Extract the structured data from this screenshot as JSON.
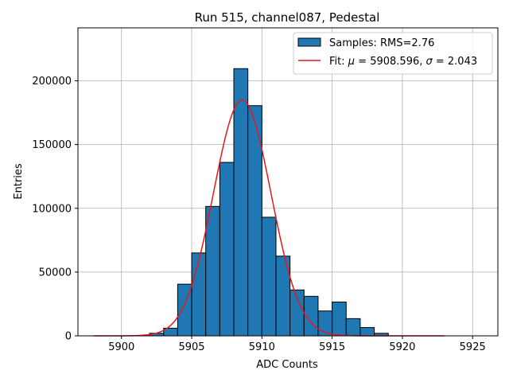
{
  "chart_data": {
    "type": "histogram",
    "title": "Run 515, channel087, Pedestal",
    "xlabel": "ADC Counts",
    "ylabel": "Entries",
    "xlim": [
      5896.9,
      5926.8
    ],
    "ylim": [
      0,
      241500
    ],
    "grid": true,
    "xticks": [
      5900,
      5905,
      5910,
      5915,
      5920,
      5925
    ],
    "xtick_labels": [
      "5900",
      "5905",
      "5910",
      "5915",
      "5920",
      "5925"
    ],
    "yticks": [
      0,
      50000,
      100000,
      150000,
      200000
    ],
    "ytick_labels": [
      "0",
      "50000",
      "100000",
      "150000",
      "200000"
    ],
    "bin_width": 1,
    "histogram": {
      "name": "Samples: RMS=2.76",
      "color": "#1f77b4",
      "bin_centers": [
        5902.5,
        5903.5,
        5904.5,
        5905.5,
        5906.5,
        5907.5,
        5908.5,
        5909.5,
        5910.5,
        5911.5,
        5912.5,
        5913.5,
        5914.5,
        5915.5,
        5916.5,
        5917.5,
        5918.5
      ],
      "counts": [
        2000,
        6000,
        40500,
        65000,
        101500,
        136000,
        209500,
        180500,
        93000,
        62500,
        36000,
        31000,
        19500,
        26500,
        13500,
        6500,
        2000
      ]
    },
    "fit": {
      "name": "Fit: μ = 5908.596, σ = 2.043",
      "color": "#e8161b",
      "mu": 5908.596,
      "sigma": 2.043,
      "amplitude": 185000,
      "x_range": [
        5898,
        5923
      ]
    },
    "legend": {
      "position": "top-right",
      "entries": [
        {
          "label": "Samples: RMS=2.76",
          "kind": "patch"
        },
        {
          "label_prefix": "Fit: ",
          "mu_symbol": "μ",
          "mu_text": " = 5908.596, ",
          "sigma_symbol": "σ",
          "sigma_text": " = 2.043",
          "kind": "line"
        }
      ]
    }
  }
}
